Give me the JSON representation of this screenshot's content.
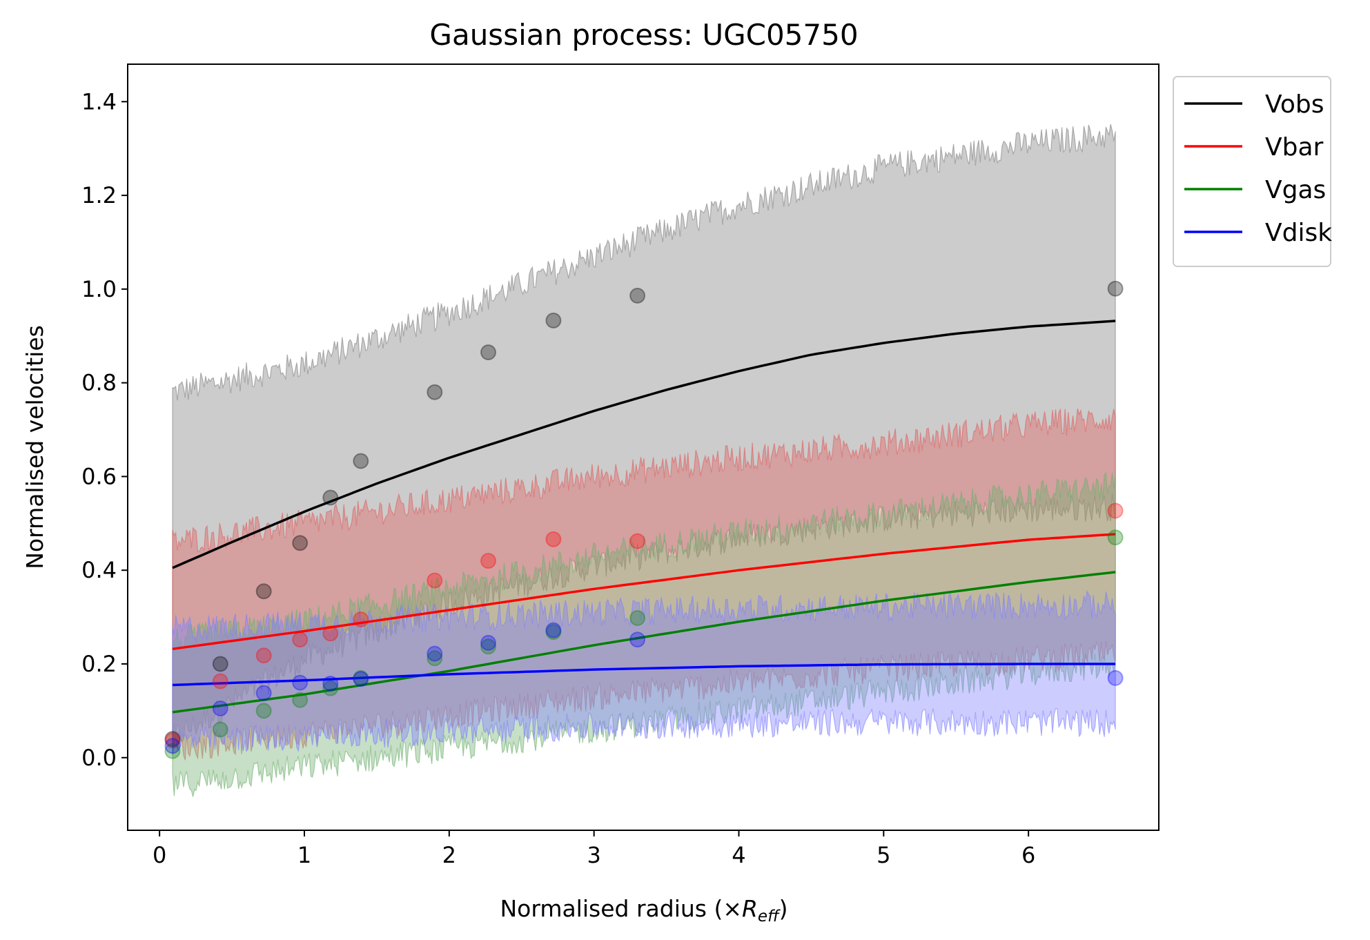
{
  "chart_data": {
    "type": "line",
    "title": "Gaussian process: UGC05750",
    "xlabel": "Normalised radius (×",
    "xlabel_math": "R",
    "xlabel_sub": "eff",
    "xlabel_close": ")",
    "ylabel": "Normalised velocities",
    "xlim": [
      -0.22,
      6.9
    ],
    "ylim": [
      -0.155,
      1.48
    ],
    "xticks": [
      0,
      1,
      2,
      3,
      4,
      5,
      6
    ],
    "yticks": [
      0.0,
      0.2,
      0.4,
      0.6,
      0.8,
      1.0,
      1.2,
      1.4
    ],
    "ytick_labels": [
      "0.0",
      "0.2",
      "0.4",
      "0.6",
      "0.8",
      "1.0",
      "1.2",
      "1.4"
    ],
    "legend_position": "outside-top-right",
    "x_range": [
      0.09,
      6.6
    ],
    "series": [
      {
        "name": "Vobs",
        "color": "#000000",
        "fill_color": "#808080",
        "mean_curve": {
          "x": [
            0.09,
            0.5,
            1.0,
            1.5,
            2.0,
            2.5,
            3.0,
            3.5,
            4.0,
            4.5,
            5.0,
            5.5,
            6.0,
            6.6
          ],
          "y": [
            0.405,
            0.46,
            0.525,
            0.585,
            0.64,
            0.69,
            0.74,
            0.785,
            0.825,
            0.86,
            0.885,
            0.905,
            0.92,
            0.932
          ]
        },
        "upper_band": {
          "x": [
            0.09,
            1.0,
            2.0,
            3.0,
            4.0,
            5.0,
            6.0,
            6.6
          ],
          "y": [
            0.78,
            0.84,
            0.95,
            1.07,
            1.18,
            1.26,
            1.31,
            1.33
          ]
        },
        "lower_band": {
          "x": [
            0.09,
            1.0,
            2.0,
            3.0,
            4.0,
            5.0,
            6.0,
            6.6
          ],
          "y": [
            0.04,
            0.21,
            0.33,
            0.41,
            0.47,
            0.51,
            0.53,
            0.535
          ]
        },
        "points": {
          "x": [
            0.09,
            0.42,
            0.72,
            0.97,
            1.18,
            1.39,
            1.9,
            2.27,
            2.72,
            3.3,
            6.6
          ],
          "y": [
            0.04,
            0.2,
            0.355,
            0.458,
            0.555,
            0.633,
            0.78,
            0.865,
            0.933,
            0.986,
            1.001
          ]
        }
      },
      {
        "name": "Vbar",
        "color": "#ff0000",
        "fill_color": "#e06060",
        "mean_curve": {
          "x": [
            0.09,
            1.0,
            2.0,
            3.0,
            4.0,
            5.0,
            6.0,
            6.6
          ],
          "y": [
            0.232,
            0.27,
            0.315,
            0.36,
            0.4,
            0.435,
            0.465,
            0.477
          ]
        },
        "upper_band": {
          "x": [
            0.09,
            1.0,
            2.0,
            3.0,
            4.0,
            5.0,
            6.0,
            6.6
          ],
          "y": [
            0.46,
            0.5,
            0.55,
            0.6,
            0.64,
            0.67,
            0.71,
            0.725
          ]
        },
        "lower_band": {
          "x": [
            0.09,
            1.0,
            2.0,
            3.0,
            4.0,
            5.0,
            6.0,
            6.6
          ],
          "y": [
            0.02,
            0.05,
            0.09,
            0.13,
            0.16,
            0.19,
            0.21,
            0.22
          ]
        },
        "points": {
          "x": [
            0.09,
            0.42,
            0.72,
            0.97,
            1.18,
            1.39,
            1.9,
            2.27,
            2.72,
            3.3,
            6.6
          ],
          "y": [
            0.037,
            0.163,
            0.218,
            0.252,
            0.265,
            0.295,
            0.378,
            0.42,
            0.466,
            0.462,
            0.527
          ]
        }
      },
      {
        "name": "Vgas",
        "color": "#008000",
        "fill_color": "#70b070",
        "mean_curve": {
          "x": [
            0.09,
            1.0,
            2.0,
            3.0,
            4.0,
            5.0,
            6.0,
            6.6
          ],
          "y": [
            0.097,
            0.135,
            0.185,
            0.24,
            0.29,
            0.335,
            0.375,
            0.396
          ]
        },
        "upper_band": {
          "x": [
            0.09,
            1.0,
            2.0,
            3.0,
            4.0,
            5.0,
            6.0,
            6.6
          ],
          "y": [
            0.25,
            0.29,
            0.36,
            0.43,
            0.48,
            0.52,
            0.56,
            0.58
          ]
        },
        "lower_band": {
          "x": [
            0.09,
            1.0,
            2.0,
            3.0,
            4.0,
            5.0,
            6.0,
            6.6
          ],
          "y": [
            -0.06,
            -0.02,
            0.02,
            0.06,
            0.1,
            0.14,
            0.18,
            0.2
          ]
        },
        "points": {
          "x": [
            0.09,
            0.42,
            0.72,
            0.97,
            1.18,
            1.39,
            1.9,
            2.27,
            2.72,
            3.3,
            6.6
          ],
          "y": [
            0.014,
            0.06,
            0.1,
            0.123,
            0.148,
            0.17,
            0.212,
            0.237,
            0.268,
            0.298,
            0.47
          ]
        }
      },
      {
        "name": "Vdisk",
        "color": "#0000ff",
        "fill_color": "#8080ff",
        "mean_curve": {
          "x": [
            0.09,
            1.0,
            2.0,
            3.0,
            4.0,
            5.0,
            6.0,
            6.6
          ],
          "y": [
            0.155,
            0.165,
            0.178,
            0.188,
            0.195,
            0.199,
            0.2,
            0.2
          ]
        },
        "upper_band": {
          "x": [
            0.09,
            1.0,
            2.0,
            3.0,
            4.0,
            5.0,
            6.0,
            6.6
          ],
          "y": [
            0.275,
            0.285,
            0.3,
            0.31,
            0.318,
            0.322,
            0.325,
            0.326
          ]
        },
        "lower_band": {
          "x": [
            0.09,
            1.0,
            2.0,
            3.0,
            4.0,
            5.0,
            6.0,
            6.6
          ],
          "y": [
            0.035,
            0.045,
            0.056,
            0.066,
            0.072,
            0.076,
            0.075,
            0.074
          ]
        },
        "points": {
          "x": [
            0.09,
            0.42,
            0.72,
            0.97,
            1.18,
            1.39,
            1.9,
            2.27,
            2.72,
            3.3,
            6.6
          ],
          "y": [
            0.025,
            0.105,
            0.138,
            0.16,
            0.158,
            0.168,
            0.222,
            0.245,
            0.272,
            0.252,
            0.17
          ]
        }
      }
    ]
  }
}
